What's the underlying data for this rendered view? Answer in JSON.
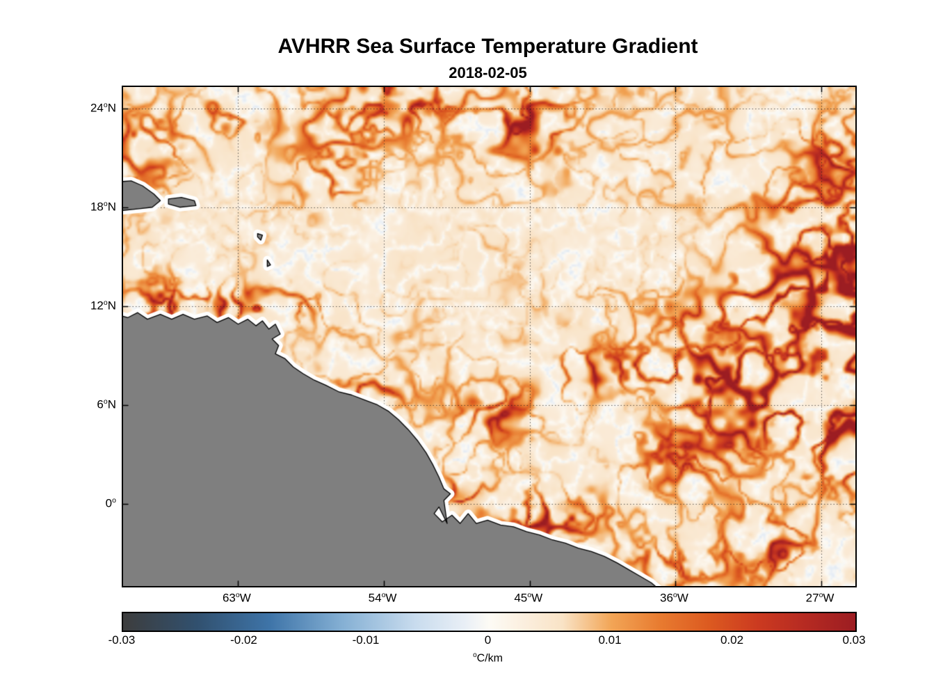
{
  "figure": {
    "title": "AVHRR Sea Surface Temperature Gradient",
    "subtitle": "2018-02-05"
  },
  "chart_data": {
    "type": "heatmap",
    "title": "AVHRR Sea Surface Temperature Gradient",
    "date": "2018-02-05",
    "description": "Sea surface temperature gradient magnitude over the western tropical Atlantic and northeast South American coast. Orange-red filaments mark strong positive SST fronts, pale cream is weak gradient, gray polygons are land, white band along shore is the coastal no-data halo.",
    "lon_range": [
      -70.1,
      -24.9
    ],
    "lat_range": [
      -5.0,
      25.3
    ],
    "grid": "dotted",
    "x_axis": {
      "ticks": [
        {
          "value": -63,
          "text": "63",
          "sup": "o",
          "suffix": "W"
        },
        {
          "value": -54,
          "text": "54",
          "sup": "o",
          "suffix": "W"
        },
        {
          "value": -45,
          "text": "45",
          "sup": "o",
          "suffix": "W"
        },
        {
          "value": -36,
          "text": "36",
          "sup": "o",
          "suffix": "W"
        },
        {
          "value": -27,
          "text": "27",
          "sup": "o",
          "suffix": "W"
        }
      ]
    },
    "y_axis": {
      "ticks": [
        {
          "value": 24,
          "text": "24",
          "sup": "o",
          "suffix": "N"
        },
        {
          "value": 18,
          "text": "18",
          "sup": "o",
          "suffix": "N"
        },
        {
          "value": 12,
          "text": "12",
          "sup": "o",
          "suffix": "N"
        },
        {
          "value": 6,
          "text": "6",
          "sup": "o",
          "suffix": "N"
        },
        {
          "value": 0,
          "text": "0",
          "sup": "o",
          "suffix": ""
        }
      ]
    },
    "colorbar": {
      "min": -0.03,
      "max": 0.03,
      "label_sup": "o",
      "label_text": "C/km",
      "ticks": [
        {
          "value": -0.03,
          "label": "-0.03"
        },
        {
          "value": -0.02,
          "label": "-0.02"
        },
        {
          "value": -0.01,
          "label": "-0.01"
        },
        {
          "value": 0,
          "label": "0"
        },
        {
          "value": 0.01,
          "label": "0.01"
        },
        {
          "value": 0.02,
          "label": "0.02"
        },
        {
          "value": 0.03,
          "label": "0.03"
        }
      ],
      "stops": [
        {
          "v": -0.03,
          "color": "#3d3d3d"
        },
        {
          "v": -0.024,
          "color": "#31506e"
        },
        {
          "v": -0.018,
          "color": "#3e74a8"
        },
        {
          "v": -0.012,
          "color": "#85b0d4"
        },
        {
          "v": -0.006,
          "color": "#c9dcee"
        },
        {
          "v": -0.002,
          "color": "#e9eff6"
        },
        {
          "v": 0.0,
          "color": "#fdfbf5"
        },
        {
          "v": 0.003,
          "color": "#fbeedd"
        },
        {
          "v": 0.006,
          "color": "#f9e3c6"
        },
        {
          "v": 0.01,
          "color": "#f2a556"
        },
        {
          "v": 0.014,
          "color": "#e87b30"
        },
        {
          "v": 0.018,
          "color": "#dc5a20"
        },
        {
          "v": 0.022,
          "color": "#cb3a20"
        },
        {
          "v": 0.026,
          "color": "#b52a22"
        },
        {
          "v": 0.03,
          "color": "#9c1d22"
        }
      ]
    },
    "land": {
      "fill_color": "#7f7f7f",
      "outline_color": "#000000",
      "halo_color": "#ffffff",
      "polygons": {
        "south_america": [
          [
            -71,
            11.6
          ],
          [
            -69.8,
            11.3
          ],
          [
            -69.2,
            11.6
          ],
          [
            -68.6,
            11.2
          ],
          [
            -67.8,
            11.5
          ],
          [
            -67.1,
            11.2
          ],
          [
            -66.4,
            11.5
          ],
          [
            -65.7,
            11.2
          ],
          [
            -64.9,
            11.4
          ],
          [
            -64.3,
            11.0
          ],
          [
            -63.6,
            11.3
          ],
          [
            -63.0,
            10.9
          ],
          [
            -62.4,
            11.2
          ],
          [
            -61.9,
            10.8
          ],
          [
            -61.5,
            11.1
          ],
          [
            -61.1,
            10.6
          ],
          [
            -60.7,
            10.9
          ],
          [
            -60.4,
            10.3
          ],
          [
            -60.9,
            10.0
          ],
          [
            -60.5,
            9.6
          ],
          [
            -60.7,
            9.1
          ],
          [
            -60.1,
            8.8
          ],
          [
            -59.6,
            8.3
          ],
          [
            -59.0,
            7.9
          ],
          [
            -58.3,
            7.5
          ],
          [
            -57.6,
            7.2
          ],
          [
            -56.8,
            6.8
          ],
          [
            -56.0,
            6.6
          ],
          [
            -55.2,
            6.3
          ],
          [
            -54.4,
            6.0
          ],
          [
            -53.7,
            5.6
          ],
          [
            -53.1,
            5.1
          ],
          [
            -52.5,
            4.5
          ],
          [
            -51.9,
            3.8
          ],
          [
            -51.4,
            3.1
          ],
          [
            -51.0,
            2.4
          ],
          [
            -50.6,
            1.6
          ],
          [
            -50.3,
            0.9
          ],
          [
            -49.9,
            0.6
          ],
          [
            -50.3,
            0.2
          ],
          [
            -50.1,
            -1.2
          ],
          [
            -50.6,
            -0.2
          ],
          [
            -50.9,
            -0.6
          ],
          [
            -50.4,
            -1.1
          ],
          [
            -49.8,
            -0.7
          ],
          [
            -49.3,
            -1.2
          ],
          [
            -48.8,
            -0.6
          ],
          [
            -48.3,
            -1.2
          ],
          [
            -47.6,
            -1.0
          ],
          [
            -46.8,
            -1.3
          ],
          [
            -46.0,
            -1.4
          ],
          [
            -45.2,
            -1.7
          ],
          [
            -44.4,
            -1.9
          ],
          [
            -43.6,
            -2.2
          ],
          [
            -42.8,
            -2.4
          ],
          [
            -42.0,
            -2.7
          ],
          [
            -41.2,
            -2.9
          ],
          [
            -40.4,
            -3.2
          ],
          [
            -39.6,
            -3.6
          ],
          [
            -38.9,
            -4.0
          ],
          [
            -38.2,
            -4.4
          ],
          [
            -37.5,
            -4.8
          ],
          [
            -36.9,
            -5.3
          ],
          [
            -36.6,
            -6.0
          ],
          [
            -71.0,
            -6.0
          ]
        ],
        "hispaniola": [
          [
            -71.0,
            19.5
          ],
          [
            -69.6,
            19.6
          ],
          [
            -68.9,
            19.3
          ],
          [
            -68.2,
            18.8
          ],
          [
            -67.8,
            18.4
          ],
          [
            -68.3,
            18.0
          ],
          [
            -69.2,
            17.9
          ],
          [
            -70.2,
            17.8
          ],
          [
            -71.0,
            17.9
          ]
        ],
        "puerto_rico": [
          [
            -67.3,
            18.5
          ],
          [
            -66.5,
            18.6
          ],
          [
            -65.7,
            18.4
          ],
          [
            -65.6,
            18.1
          ],
          [
            -66.6,
            18.0
          ],
          [
            -67.3,
            18.2
          ]
        ],
        "guadeloupe": [
          [
            -61.8,
            16.4
          ],
          [
            -61.5,
            16.3
          ],
          [
            -61.6,
            16.0
          ],
          [
            -61.8,
            16.2
          ]
        ],
        "martinique": [
          [
            -61.2,
            14.8
          ],
          [
            -61.0,
            14.5
          ],
          [
            -61.2,
            14.4
          ]
        ]
      }
    },
    "field": {
      "seed": 7,
      "base_value": 0.0045,
      "base_noise": 0.002,
      "fil_gain": 0.026,
      "web_depth": 0.007,
      "base_amp": 0.18,
      "scale1": 0.35,
      "scale1b": 0.55,
      "scale2": 0.85,
      "sharp1": 10,
      "sharp2": 6,
      "features_lon_lat_rx_ry_amp": [
        [
          -66.5,
          11.9,
          4.5,
          0.9,
          1.3
        ],
        [
          -61.5,
          12.1,
          2.5,
          0.8,
          0.9
        ],
        [
          -67.5,
          13.2,
          1.5,
          1.0,
          0.5
        ],
        [
          -68.5,
          21.7,
          2.5,
          2.2,
          0.75
        ],
        [
          -63.5,
          23.8,
          2.5,
          1.2,
          0.7
        ],
        [
          -58.0,
          23.0,
          6.0,
          2.0,
          0.35
        ],
        [
          -53.0,
          24.5,
          3.0,
          1.2,
          0.85
        ],
        [
          -45.0,
          23.0,
          2.0,
          1.5,
          0.85
        ],
        [
          -57.5,
          19.5,
          2.0,
          1.5,
          0.35
        ],
        [
          -54.0,
          16.0,
          6.0,
          3.0,
          -0.12
        ],
        [
          -55.0,
          6.8,
          2.2,
          0.8,
          0.5
        ],
        [
          -47.0,
          5.5,
          2.0,
          1.5,
          0.45
        ],
        [
          -49.3,
          0.4,
          1.5,
          1.0,
          0.6
        ],
        [
          -44.0,
          -0.8,
          3.0,
          1.2,
          0.85
        ],
        [
          -39.0,
          8.0,
          3.5,
          1.2,
          1.1
        ],
        [
          -33.5,
          7.8,
          2.5,
          2.0,
          1.2
        ],
        [
          -30.5,
          5.5,
          3.0,
          2.5,
          0.95
        ],
        [
          -36.5,
          3.0,
          2.0,
          1.8,
          0.6
        ],
        [
          -34.0,
          11.5,
          2.5,
          1.5,
          0.7
        ],
        [
          -29.5,
          13.0,
          3.0,
          2.0,
          0.7
        ],
        [
          -28.0,
          17.5,
          3.0,
          2.5,
          0.6
        ],
        [
          -26.5,
          21.0,
          2.5,
          2.0,
          0.65
        ],
        [
          -26.0,
          9.0,
          2.5,
          4.0,
          0.95
        ],
        [
          -25.3,
          14.6,
          1.6,
          2.0,
          1.1
        ],
        [
          -25.5,
          4.0,
          1.5,
          2.5,
          0.9
        ],
        [
          -31.0,
          -2.5,
          3.0,
          1.8,
          0.8
        ],
        [
          -36.5,
          -4.0,
          2.5,
          1.2,
          0.6
        ],
        [
          -28.0,
          8.0,
          6.0,
          9.0,
          0.4
        ]
      ]
    }
  }
}
